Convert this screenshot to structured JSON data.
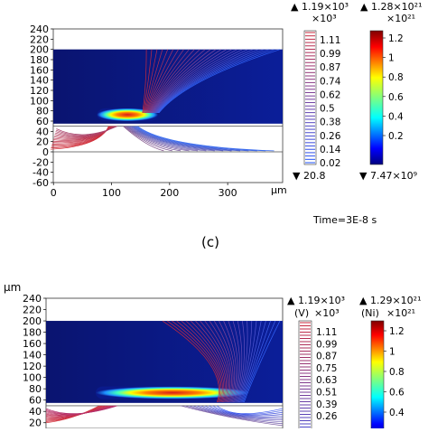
{
  "caption": "(c)",
  "colors": {
    "potential_line": "#c0392b",
    "density_high": "#d7191c",
    "field_bg": "#0a1a8c"
  },
  "chart_data": [
    {
      "type": "heatmap",
      "title": "",
      "time_label": "Time=3E-8 s",
      "unit_label": "μm",
      "x_ticks": [
        0,
        100,
        200,
        300
      ],
      "y_ticks": [
        -60,
        -40,
        -20,
        0,
        20,
        40,
        60,
        80,
        100,
        120,
        140,
        160,
        180,
        200,
        220,
        240
      ],
      "xlim": [
        -5,
        390
      ],
      "ylim": [
        -60,
        240
      ],
      "colorbars": [
        {
          "name": "",
          "scale_label": "×10³",
          "max_label": "▲ 1.19×10³",
          "min_label": "▼ 20.8",
          "ticks": [
            "1.11",
            "0.99",
            "0.87",
            "0.74",
            "0.62",
            "0.5",
            "0.38",
            "0.26",
            "0.14",
            "0.02"
          ],
          "style": "contour-lines"
        },
        {
          "name": "",
          "scale_label": "×10²¹",
          "max_label": "▲ 1.28×10²¹",
          "min_label": "▼ 7.47×10⁹",
          "ticks": [
            "1.2",
            "1",
            "0.8",
            "0.6",
            "0.4",
            "0.2"
          ],
          "style": "jet"
        }
      ]
    },
    {
      "type": "heatmap",
      "title": "",
      "unit_label": "μm",
      "y_ticks": [
        20,
        40,
        60,
        80,
        100,
        120,
        140,
        160,
        180,
        200,
        220,
        240
      ],
      "ylim": [
        10,
        240
      ],
      "colorbars": [
        {
          "name": "(V)",
          "scale_label": "×10³",
          "max_label": "▲ 1.19×10³",
          "ticks": [
            "1.11",
            "0.99",
            "0.87",
            "0.75",
            "0.63",
            "0.51",
            "0.39",
            "0.26"
          ],
          "style": "contour-lines"
        },
        {
          "name": "(Ni)",
          "scale_label": "×10²¹",
          "max_label": "▲ 1.29×10²¹",
          "ticks": [
            "1.2",
            "1",
            "0.8",
            "0.6",
            "0.4"
          ],
          "style": "jet"
        }
      ]
    }
  ]
}
